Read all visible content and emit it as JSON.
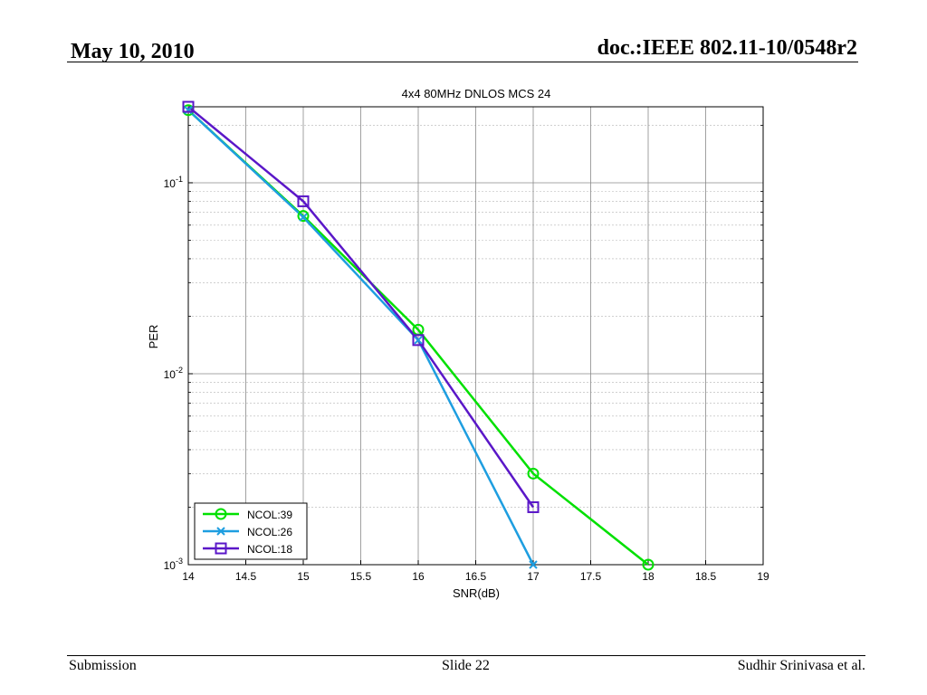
{
  "header": {
    "date": "May 10, 2010",
    "doc_id": "doc.:IEEE 802.11-10/0548r2"
  },
  "footer": {
    "left": "Submission",
    "center": "Slide 22",
    "right": "Sudhir Srinivasa et al."
  },
  "chart_data": {
    "type": "line",
    "title": "4x4 80MHz DNLOS MCS 24",
    "xlabel": "SNR(dB)",
    "ylabel": "PER",
    "xlim": [
      14,
      19
    ],
    "ylim": [
      0.001,
      0.25
    ],
    "yscale": "log",
    "x_ticks": [
      "14",
      "14.5",
      "15",
      "15.5",
      "16",
      "16.5",
      "17",
      "17.5",
      "18",
      "18.5",
      "19"
    ],
    "y_ticks": [
      {
        "base": "10",
        "exp": "-3",
        "value": 0.001
      },
      {
        "base": "10",
        "exp": "-2",
        "value": 0.01
      },
      {
        "base": "10",
        "exp": "-1",
        "value": 0.1
      }
    ],
    "grid": true,
    "legend_position": "bottom-left",
    "series": [
      {
        "name": "NCOL:39",
        "color": "#00e000",
        "marker": "circle",
        "x": [
          14,
          15,
          16,
          17,
          18
        ],
        "y": [
          0.24,
          0.067,
          0.017,
          0.003,
          0.001
        ]
      },
      {
        "name": "NCOL:26",
        "color": "#1e9ee0",
        "marker": "x",
        "x": [
          14,
          15,
          16,
          17
        ],
        "y": [
          0.24,
          0.066,
          0.015,
          0.001
        ]
      },
      {
        "name": "NCOL:18",
        "color": "#5a17c8",
        "marker": "square",
        "x": [
          14,
          15,
          16,
          17
        ],
        "y": [
          0.25,
          0.08,
          0.015,
          0.002
        ]
      }
    ]
  }
}
